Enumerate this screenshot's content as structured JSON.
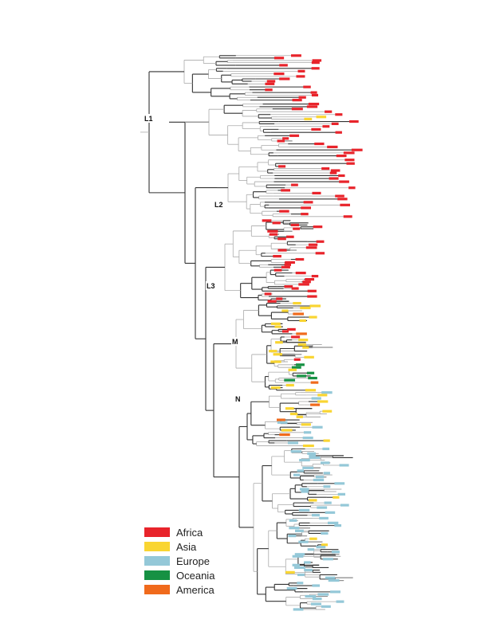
{
  "clade_labels": [
    "L1",
    "L2",
    "L3",
    "M",
    "N"
  ],
  "legend": [
    {
      "label": "Africa",
      "color": "#e8242b"
    },
    {
      "label": "Asia",
      "color": "#f9d532"
    },
    {
      "label": "Europe",
      "color": "#94c8d8"
    },
    {
      "label": "Oceania",
      "color": "#169143"
    },
    {
      "label": "America",
      "color": "#f06a1c"
    }
  ],
  "branch_colors": {
    "dark": "#333333",
    "light": "#aaaaaa"
  }
}
